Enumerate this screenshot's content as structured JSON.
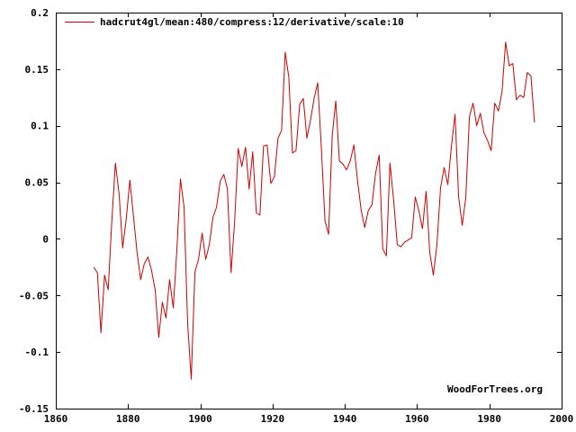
{
  "chart_data": {
    "type": "line",
    "title": "",
    "xlabel": "",
    "ylabel": "",
    "xlim": [
      1860,
      2000
    ],
    "ylim": [
      -0.15,
      0.2
    ],
    "x_ticks": [
      1860,
      1880,
      1900,
      1920,
      1940,
      1960,
      1980,
      2000
    ],
    "y_ticks": [
      -0.15,
      -0.1,
      -0.05,
      0,
      0.05,
      0.1,
      0.15,
      0.2
    ],
    "y_tick_labels": [
      "-0.15",
      "-0.1",
      "-0.05",
      "0",
      "0.05",
      "0.1",
      "0.15",
      "0.2"
    ],
    "x_tick_labels": [
      "1860",
      "1880",
      "1900",
      "1920",
      "1940",
      "1960",
      "1980",
      "2000"
    ],
    "grid": false,
    "legend_position": "top-left",
    "watermark": "WoodForTrees.org",
    "series": [
      {
        "name": "hadcrut4gl/mean:480/compress:12/derivative/scale:10",
        "color": "#cc0000",
        "x": [
          1870.5,
          1871.5,
          1872.5,
          1873.5,
          1874.5,
          1875.5,
          1876.5,
          1877.5,
          1878.5,
          1879.5,
          1880.5,
          1881.5,
          1882.5,
          1883.5,
          1884.5,
          1885.5,
          1886.5,
          1887.5,
          1888.5,
          1889.5,
          1890.5,
          1891.5,
          1892.5,
          1893.5,
          1894.5,
          1895.5,
          1896.5,
          1897.5,
          1898.5,
          1899.5,
          1900.5,
          1901.5,
          1902.5,
          1903.5,
          1904.5,
          1905.5,
          1906.5,
          1907.5,
          1908.5,
          1909.5,
          1910.5,
          1911.5,
          1912.5,
          1913.5,
          1914.5,
          1915.5,
          1916.5,
          1917.5,
          1918.5,
          1919.5,
          1920.5,
          1921.5,
          1922.5,
          1923.5,
          1924.5,
          1925.5,
          1926.5,
          1927.5,
          1928.5,
          1929.5,
          1930.5,
          1931.5,
          1932.5,
          1933.5,
          1934.5,
          1935.5,
          1936.5,
          1937.5,
          1938.5,
          1939.5,
          1940.5,
          1941.5,
          1942.5,
          1943.5,
          1944.5,
          1945.5,
          1946.5,
          1947.5,
          1948.5,
          1949.5,
          1950.5,
          1951.5,
          1952.5,
          1953.5,
          1954.5,
          1955.5,
          1956.5,
          1957.5,
          1958.5,
          1959.5,
          1960.5,
          1961.5,
          1962.5,
          1963.5,
          1964.5,
          1965.5,
          1966.5,
          1967.5,
          1968.5,
          1969.5,
          1970.5,
          1971.5,
          1972.5,
          1973.5,
          1974.5,
          1975.5,
          1976.5,
          1977.5,
          1978.5,
          1979.5,
          1980.5,
          1981.5,
          1982.5,
          1983.5,
          1984.5,
          1985.5,
          1986.5,
          1987.5,
          1988.5,
          1989.5,
          1990.5,
          1991.5,
          1992.5
        ],
        "y": [
          -0.025,
          -0.03,
          -0.083,
          -0.032,
          -0.045,
          0.015,
          0.067,
          0.04,
          -0.008,
          0.018,
          0.052,
          0.02,
          -0.012,
          -0.036,
          -0.022,
          -0.016,
          -0.028,
          -0.045,
          -0.087,
          -0.056,
          -0.07,
          -0.036,
          -0.061,
          -0.01,
          0.053,
          0.028,
          -0.075,
          -0.124,
          -0.029,
          -0.018,
          0.005,
          -0.018,
          -0.005,
          0.019,
          0.028,
          0.051,
          0.057,
          0.044,
          -0.03,
          0.015,
          0.08,
          0.064,
          0.081,
          0.044,
          0.077,
          0.023,
          0.021,
          0.082,
          0.083,
          0.049,
          0.055,
          0.089,
          0.096,
          0.165,
          0.143,
          0.076,
          0.078,
          0.119,
          0.124,
          0.089,
          0.105,
          0.124,
          0.138,
          0.08,
          0.016,
          0.004,
          0.091,
          0.122,
          0.069,
          0.066,
          0.061,
          0.069,
          0.083,
          0.052,
          0.026,
          0.01,
          0.025,
          0.03,
          0.058,
          0.074,
          -0.009,
          -0.015,
          0.067,
          0.035,
          -0.005,
          -0.007,
          -0.003,
          -0.001,
          0.001,
          0.037,
          0.025,
          0.009,
          0.042,
          -0.012,
          -0.032,
          -0.005,
          0.045,
          0.063,
          0.048,
          0.082,
          0.11,
          0.037,
          0.012,
          0.037,
          0.108,
          0.12,
          0.1,
          0.111,
          0.094,
          0.087,
          0.078,
          0.12,
          0.113,
          0.13,
          0.174,
          0.153,
          0.155,
          0.123,
          0.127,
          0.125,
          0.147,
          0.144,
          0.103
        ]
      }
    ]
  }
}
